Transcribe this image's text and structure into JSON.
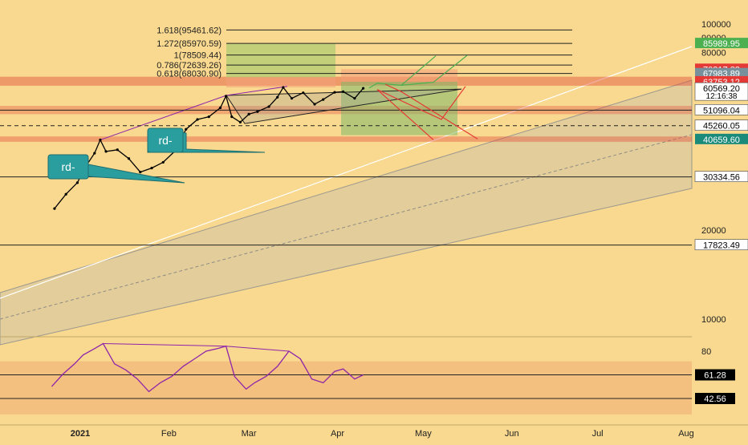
{
  "colors": {
    "background": "#f9d98f",
    "candle": "#000000",
    "rsi_line": "#8e24aa",
    "red_zone": "#e04b3a",
    "green_box": "#9fc96a",
    "channel": "#b9b6b0",
    "teal_label": "#2a9d9e",
    "up_arrow": "#4caf50",
    "down_arrow": "#e53935",
    "price_tag_current": "#ffffff"
  },
  "chart_data": [
    {
      "type": "line",
      "title": "",
      "price_axis": {
        "ticks": [
          10000,
          20000,
          30000,
          40000,
          50000,
          60000,
          70000,
          80000,
          90000,
          100000
        ],
        "tick_labels": [
          "10000",
          "20000",
          "",
          "",
          "",
          "",
          "",
          "80000",
          "90000",
          "100000"
        ]
      },
      "time_axis": {
        "labels": [
          "2021",
          "Feb",
          "Mar",
          "Apr",
          "May",
          "Jun",
          "Jul",
          "Aug"
        ],
        "label_dates": [
          "2021-01-01",
          "2021-02-01",
          "2021-03-01",
          "2021-04-01",
          "2021-05-01",
          "2021-06-01",
          "2021-07-01",
          "2021-08-01"
        ]
      },
      "series": [
        {
          "x": [
            "2020-12-23",
            "2020-12-27",
            "2020-12-31",
            "2021-01-03",
            "2021-01-06",
            "2021-01-08",
            "2021-01-10",
            "2021-01-14",
            "2021-01-18",
            "2021-01-22",
            "2021-01-26",
            "2021-01-30",
            "2021-02-03",
            "2021-02-07",
            "2021-02-11",
            "2021-02-15",
            "2021-02-19",
            "2021-02-21",
            "2021-02-23",
            "2021-02-26",
            "2021-03-01",
            "2021-03-04",
            "2021-03-08",
            "2021-03-11",
            "2021-03-13",
            "2021-03-16",
            "2021-03-20",
            "2021-03-24",
            "2021-03-27",
            "2021-03-31",
            "2021-04-03",
            "2021-04-07",
            "2021-04-10"
          ],
          "values": [
            23700,
            26500,
            29000,
            33000,
            36500,
            40500,
            37000,
            37500,
            35000,
            31500,
            32500,
            34000,
            37000,
            44000,
            47500,
            48500,
            52000,
            57000,
            48500,
            46500,
            49500,
            50500,
            52500,
            56500,
            61000,
            56000,
            58500,
            53500,
            55500,
            58700,
            59000,
            56000,
            60569.2
          ]
        }
      ],
      "fibonacci_levels": [
        {
          "label": "0.618(68030.90)",
          "value": 68030.9
        },
        {
          "label": "0.786(72639.26)",
          "value": 72639.26
        },
        {
          "label": "1(78509.44)",
          "value": 78509.44
        },
        {
          "label": "1.272(85970.59)",
          "value": 85970.59
        },
        {
          "label": "1.618(95461.62)",
          "value": 95461.62
        }
      ],
      "horizontal_levels": [
        {
          "value": 51096.04,
          "label": "51096.04",
          "style": "solid"
        },
        {
          "value": 45260.05,
          "label": "45260.05",
          "style": "dashed"
        },
        {
          "value": 30334.56,
          "label": "30334.56",
          "style": "solid"
        },
        {
          "value": 17823.49,
          "label": "17823.49",
          "style": "solid"
        }
      ],
      "price_tags": [
        {
          "label": "85989.95",
          "value": 85989.95,
          "color": "#4caf50"
        },
        {
          "label": "70317.82",
          "value": 70317.82,
          "color": "#e53935"
        },
        {
          "label": "67983.89",
          "value": 67983.89,
          "color": "#78909c"
        },
        {
          "label": "63753.12",
          "value": 63753.12,
          "color": "#e53935"
        },
        {
          "label": "60569.20",
          "value": 60569.2,
          "color": "#ffffff",
          "sub": "12:16:38"
        },
        {
          "label": "51096.04",
          "value": 51096.04,
          "color": "#ffffff"
        },
        {
          "label": "45260.05",
          "value": 45260.05,
          "color": "#ffffff"
        },
        {
          "label": "40659.60",
          "value": 40659.6,
          "color": "#1a8a7a"
        },
        {
          "label": "30334.56",
          "value": 30334.56,
          "color": "#ffffff"
        },
        {
          "label": "17823.49",
          "value": 17823.49,
          "color": "#ffffff"
        }
      ],
      "annotations": [
        "rd-",
        "rd-"
      ]
    },
    {
      "type": "line",
      "title": "",
      "series": [
        {
          "x": [
            "2020-12-22",
            "2020-12-26",
            "2020-12-30",
            "2021-01-02",
            "2021-01-06",
            "2021-01-09",
            "2021-01-13",
            "2021-01-17",
            "2021-01-21",
            "2021-01-25",
            "2021-01-29",
            "2021-02-02",
            "2021-02-06",
            "2021-02-10",
            "2021-02-14",
            "2021-02-18",
            "2021-02-21",
            "2021-02-24",
            "2021-02-28",
            "2021-03-03",
            "2021-03-07",
            "2021-03-11",
            "2021-03-15",
            "2021-03-19",
            "2021-03-23",
            "2021-03-27",
            "2021-03-31",
            "2021-04-03",
            "2021-04-07",
            "2021-04-10"
          ],
          "values": [
            52,
            62,
            70,
            77,
            82,
            86,
            70,
            65,
            58,
            48,
            55,
            60,
            68,
            74,
            80,
            82,
            84,
            60,
            50,
            55,
            60,
            68,
            80,
            74,
            58,
            55,
            64,
            66,
            58,
            61.28
          ]
        }
      ],
      "ticks": [
        80
      ],
      "tick_labels": [
        "80"
      ],
      "levels": [
        {
          "value": 61.28,
          "label": "61.28"
        },
        {
          "value": 42.56,
          "label": "42.56"
        }
      ]
    }
  ]
}
